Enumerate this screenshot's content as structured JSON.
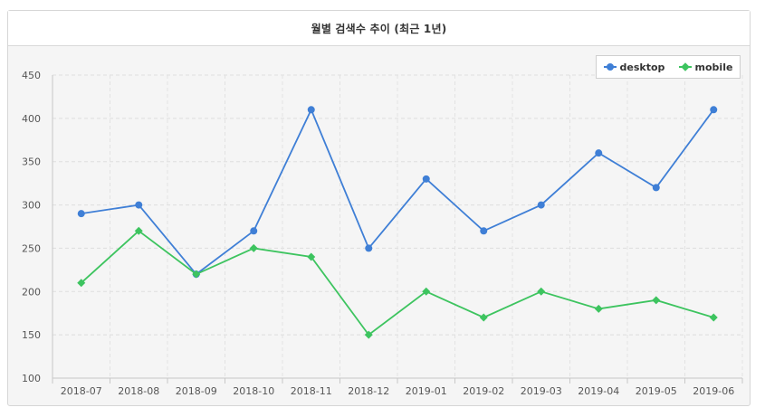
{
  "panel": {
    "title": "월별 검색수 추이 (최근 1년)"
  },
  "chart_data": {
    "type": "line",
    "title": "월별 검색수 추이 (최근 1년)",
    "categories": [
      "2018-07",
      "2018-08",
      "2018-09",
      "2018-10",
      "2018-11",
      "2018-12",
      "2019-01",
      "2019-02",
      "2019-03",
      "2019-04",
      "2019-05",
      "2019-06"
    ],
    "ylim": [
      100,
      450
    ],
    "yticks": [
      100,
      150,
      200,
      250,
      300,
      350,
      400,
      450
    ],
    "grid": true,
    "legend_position": "top-right",
    "series": [
      {
        "name": "desktop",
        "color": "#3f7fd6",
        "marker": "circle",
        "values": [
          290,
          300,
          220,
          270,
          410,
          250,
          330,
          270,
          300,
          360,
          320,
          410
        ]
      },
      {
        "name": "mobile",
        "color": "#3dc45f",
        "marker": "diamond",
        "values": [
          210,
          270,
          220,
          250,
          240,
          150,
          200,
          170,
          200,
          180,
          190,
          170
        ]
      }
    ]
  }
}
